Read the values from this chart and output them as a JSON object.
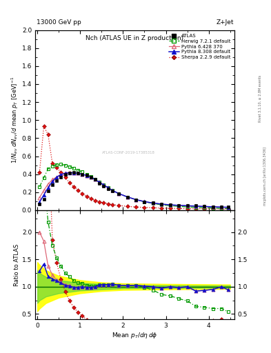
{
  "title_left": "13000 GeV pp",
  "title_right": "Z+Jet",
  "plot_title": "Nch (ATLAS UE in Z production)",
  "ylabel_main": "$1/N_{ev}$ $dN_{ev}/d$ mean $p_T$ [GeV]$^{-1}$",
  "ylabel_ratio": "Ratio to ATLAS",
  "xlabel": "Mean $p_T/d\\eta\\,d\\phi$",
  "watermark": "ATLAS-CONF-2019-17385318",
  "atlas_x": [
    0.05,
    0.15,
    0.25,
    0.35,
    0.45,
    0.55,
    0.65,
    0.75,
    0.85,
    0.95,
    1.05,
    1.15,
    1.25,
    1.35,
    1.45,
    1.55,
    1.65,
    1.75,
    1.9,
    2.1,
    2.3,
    2.5,
    2.7,
    2.9,
    3.1,
    3.3,
    3.5,
    3.7,
    3.9,
    4.1,
    4.3,
    4.45
  ],
  "atlas_y": [
    0.07,
    0.12,
    0.21,
    0.28,
    0.33,
    0.37,
    0.4,
    0.41,
    0.42,
    0.415,
    0.4,
    0.39,
    0.37,
    0.34,
    0.3,
    0.27,
    0.24,
    0.21,
    0.18,
    0.145,
    0.115,
    0.095,
    0.08,
    0.07,
    0.06,
    0.055,
    0.05,
    0.05,
    0.045,
    0.04,
    0.035,
    0.035
  ],
  "herwig_x": [
    0.05,
    0.15,
    0.25,
    0.35,
    0.45,
    0.55,
    0.65,
    0.75,
    0.85,
    0.95,
    1.05,
    1.15,
    1.25,
    1.35,
    1.45,
    1.55,
    1.65,
    1.75,
    1.9,
    2.1,
    2.3,
    2.5,
    2.7,
    2.9,
    3.1,
    3.3,
    3.5,
    3.7,
    3.9,
    4.1,
    4.3,
    4.45
  ],
  "herwig_y": [
    0.26,
    0.36,
    0.46,
    0.49,
    0.505,
    0.51,
    0.5,
    0.485,
    0.465,
    0.445,
    0.425,
    0.4,
    0.375,
    0.345,
    0.31,
    0.28,
    0.25,
    0.22,
    0.185,
    0.148,
    0.118,
    0.094,
    0.075,
    0.06,
    0.05,
    0.043,
    0.037,
    0.032,
    0.028,
    0.024,
    0.021,
    0.019
  ],
  "pythia6_x": [
    0.05,
    0.15,
    0.25,
    0.35,
    0.45,
    0.55,
    0.65,
    0.75,
    0.85,
    0.95,
    1.05,
    1.15,
    1.25,
    1.35,
    1.45,
    1.55,
    1.65,
    1.75,
    1.9,
    2.1,
    2.3,
    2.5,
    2.7,
    2.9,
    3.1,
    3.3,
    3.5,
    3.7,
    3.9,
    4.1,
    4.3,
    4.45
  ],
  "pythia6_y": [
    0.14,
    0.22,
    0.29,
    0.34,
    0.37,
    0.4,
    0.415,
    0.42,
    0.415,
    0.41,
    0.4,
    0.385,
    0.365,
    0.34,
    0.31,
    0.28,
    0.25,
    0.22,
    0.185,
    0.148,
    0.118,
    0.096,
    0.08,
    0.068,
    0.06,
    0.054,
    0.05,
    0.046,
    0.042,
    0.038,
    0.035,
    0.033
  ],
  "pythia8_x": [
    0.05,
    0.15,
    0.25,
    0.35,
    0.45,
    0.55,
    0.65,
    0.75,
    0.85,
    0.95,
    1.05,
    1.15,
    1.25,
    1.35,
    1.45,
    1.55,
    1.65,
    1.75,
    1.9,
    2.1,
    2.3,
    2.5,
    2.7,
    2.9,
    3.1,
    3.3,
    3.5,
    3.7,
    3.9,
    4.1,
    4.3,
    4.45
  ],
  "pythia8_y": [
    0.09,
    0.17,
    0.25,
    0.32,
    0.365,
    0.395,
    0.41,
    0.415,
    0.415,
    0.41,
    0.4,
    0.385,
    0.365,
    0.34,
    0.31,
    0.28,
    0.25,
    0.22,
    0.185,
    0.148,
    0.118,
    0.096,
    0.08,
    0.068,
    0.06,
    0.054,
    0.05,
    0.046,
    0.042,
    0.038,
    0.035,
    0.033
  ],
  "sherpa_x": [
    0.05,
    0.15,
    0.25,
    0.35,
    0.45,
    0.55,
    0.65,
    0.75,
    0.85,
    0.95,
    1.05,
    1.15,
    1.25,
    1.35,
    1.45,
    1.55,
    1.65,
    1.75,
    1.9,
    2.1,
    2.3,
    2.5,
    2.7,
    2.9,
    3.1,
    3.3,
    3.5,
    3.7,
    3.9,
    4.1,
    4.3,
    4.45
  ],
  "sherpa_y": [
    0.42,
    0.93,
    0.84,
    0.52,
    0.475,
    0.42,
    0.365,
    0.305,
    0.26,
    0.22,
    0.185,
    0.155,
    0.13,
    0.11,
    0.095,
    0.082,
    0.072,
    0.063,
    0.053,
    0.043,
    0.036,
    0.031,
    0.027,
    0.024,
    0.022,
    0.02,
    0.018,
    0.017,
    0.016,
    0.015,
    0.014,
    0.013
  ],
  "atlas_color": "#000000",
  "herwig_color": "#009900",
  "pythia6_color": "#dd6677",
  "pythia8_color": "#1111cc",
  "sherpa_color": "#dd1111",
  "xlim": [
    -0.05,
    4.6
  ],
  "ylim_main": [
    0.0,
    2.0
  ],
  "ylim_ratio": [
    0.4,
    2.4
  ],
  "band_yellow_x": [
    0.0,
    0.05,
    0.2,
    0.5,
    1.0,
    1.5,
    2.0,
    3.0,
    4.5
  ],
  "band_yellow_lo": [
    0.55,
    0.6,
    0.7,
    0.8,
    0.88,
    0.92,
    0.94,
    0.95,
    0.96
  ],
  "band_yellow_hi": [
    1.45,
    1.4,
    1.3,
    1.2,
    1.12,
    1.08,
    1.06,
    1.05,
    1.04
  ],
  "band_green_x": [
    0.0,
    0.05,
    0.2,
    0.5,
    1.0,
    1.5,
    2.0,
    3.0,
    4.5
  ],
  "band_green_lo": [
    0.7,
    0.75,
    0.82,
    0.88,
    0.93,
    0.95,
    0.97,
    0.975,
    0.98
  ],
  "band_green_hi": [
    1.3,
    1.25,
    1.18,
    1.12,
    1.07,
    1.05,
    1.03,
    1.025,
    1.02
  ]
}
